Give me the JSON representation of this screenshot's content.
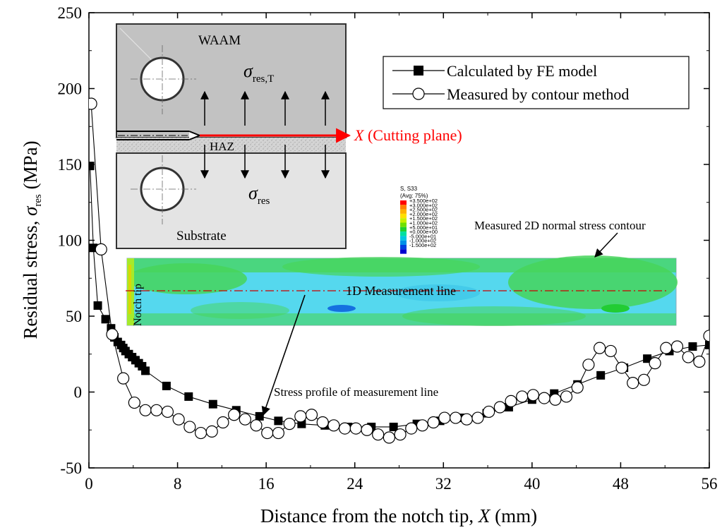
{
  "chart_data": {
    "type": "line",
    "xlabel_prefix": "Distance from the notch tip, ",
    "xlabel_var": "X",
    "xlabel_unit": " (mm)",
    "ylabel_prefix": "Residual stress, ",
    "ylabel_sym": "σ",
    "ylabel_sub": "res",
    "ylabel_unit": " (MPa)",
    "xlim": [
      0,
      56
    ],
    "ylim": [
      -50,
      250
    ],
    "xticks": [
      "0",
      "8",
      "16",
      "24",
      "32",
      "40",
      "48",
      "56"
    ],
    "yticks": [
      "-50",
      "0",
      "50",
      "100",
      "150",
      "200",
      "250"
    ],
    "legend_position": "top-right",
    "series": [
      {
        "name": "Calculated by FE model",
        "marker": "filled-square",
        "x": [
          0.1,
          0.4,
          0.8,
          1.5,
          2.0,
          2.3,
          2.6,
          2.9,
          3.1,
          3.3,
          3.6,
          3.9,
          4.2,
          4.5,
          4.8,
          5.1,
          7.0,
          9.0,
          11.2,
          13.3,
          15.4,
          17.1,
          19.2,
          21.3,
          23.4,
          25.5,
          27.5,
          29.6,
          31.7,
          33.8,
          35.9,
          37.9,
          40.0,
          42.0,
          44.1,
          46.2,
          48.3,
          50.4,
          52.4,
          54.5,
          56.0
        ],
        "y": [
          149,
          95,
          57,
          48,
          42,
          36,
          33,
          31,
          29,
          27,
          25,
          23,
          21,
          19,
          17,
          14,
          4,
          -3,
          -8,
          -12,
          -16,
          -19,
          -21,
          -22,
          -23,
          -23,
          -23,
          -21,
          -19,
          -17,
          -14,
          -10,
          -5,
          -1,
          5,
          11,
          16,
          22,
          27,
          30,
          31
        ]
      },
      {
        "name": "Measured by contour method",
        "marker": "open-circle",
        "x": [
          0.2,
          1.1,
          2.1,
          3.1,
          4.1,
          5.1,
          6.1,
          7.1,
          8.1,
          9.1,
          10.1,
          11.1,
          12.1,
          13.1,
          14.1,
          15.1,
          16.1,
          17.1,
          18.1,
          19.1,
          20.1,
          21.1,
          22.1,
          23.1,
          24.1,
          25.1,
          26.1,
          27.1,
          28.1,
          29.1,
          30.1,
          31.1,
          32.1,
          33.1,
          34.1,
          35.1,
          36.1,
          37.1,
          38.1,
          39.1,
          40.1,
          41.1,
          42.1,
          43.1,
          44.1,
          45.1,
          46.1,
          47.1,
          48.1,
          49.1,
          50.1,
          51.1,
          52.1,
          53.1,
          54.1,
          55.1,
          56.0
        ],
        "y": [
          190,
          94,
          38,
          9,
          -7,
          -12,
          -12,
          -13,
          -18,
          -23,
          -27,
          -26,
          -20,
          -15,
          -18,
          -22,
          -27,
          -27,
          -21,
          -16,
          -15,
          -20,
          -22,
          -24,
          -24,
          -25,
          -28,
          -30,
          -28,
          -24,
          -22,
          -20,
          -17,
          -17,
          -18,
          -17,
          -13,
          -10,
          -6,
          -3,
          -2,
          -4,
          -5,
          -3,
          3,
          18,
          29,
          27,
          16,
          6,
          8,
          19,
          29,
          30,
          23,
          20,
          37
        ]
      }
    ],
    "inset_schematic": {
      "label_waam": "WAAM",
      "label_haz": "HAZ",
      "label_substrate": "Substrate",
      "label_sigma": "σ",
      "label_res_t": "res,T",
      "label_res": "res",
      "cutting_var": "X",
      "cutting_label": " (Cutting plane)",
      "cutting_color": "#ff0000"
    },
    "inset_contour": {
      "legend_title_1": "S, S33",
      "legend_title_2": "(Avg: 75%)",
      "legend_values": [
        "+3.500e+02",
        "+3.000e+02",
        "+2.500e+02",
        "+2.000e+02",
        "+1.500e+02",
        "+1.000e+02",
        "+5.000e+01",
        "+0.000e+00",
        "-5.000e+01",
        "-1.000e+02",
        "-1.500e+02"
      ],
      "legend_colors": [
        "#ff0000",
        "#ff7f00",
        "#ffb000",
        "#ffe000",
        "#c8f000",
        "#70e000",
        "#20d030",
        "#00e0a0",
        "#00c8e0",
        "#0090e8",
        "#0040e0",
        "#0000d0"
      ],
      "annotation_contour": "Measured 2D normal stress contour",
      "annotation_notch": "Notch tip",
      "annotation_line": "1D Measurement line",
      "annotation_profile": "Stress profile of measurement line"
    }
  }
}
